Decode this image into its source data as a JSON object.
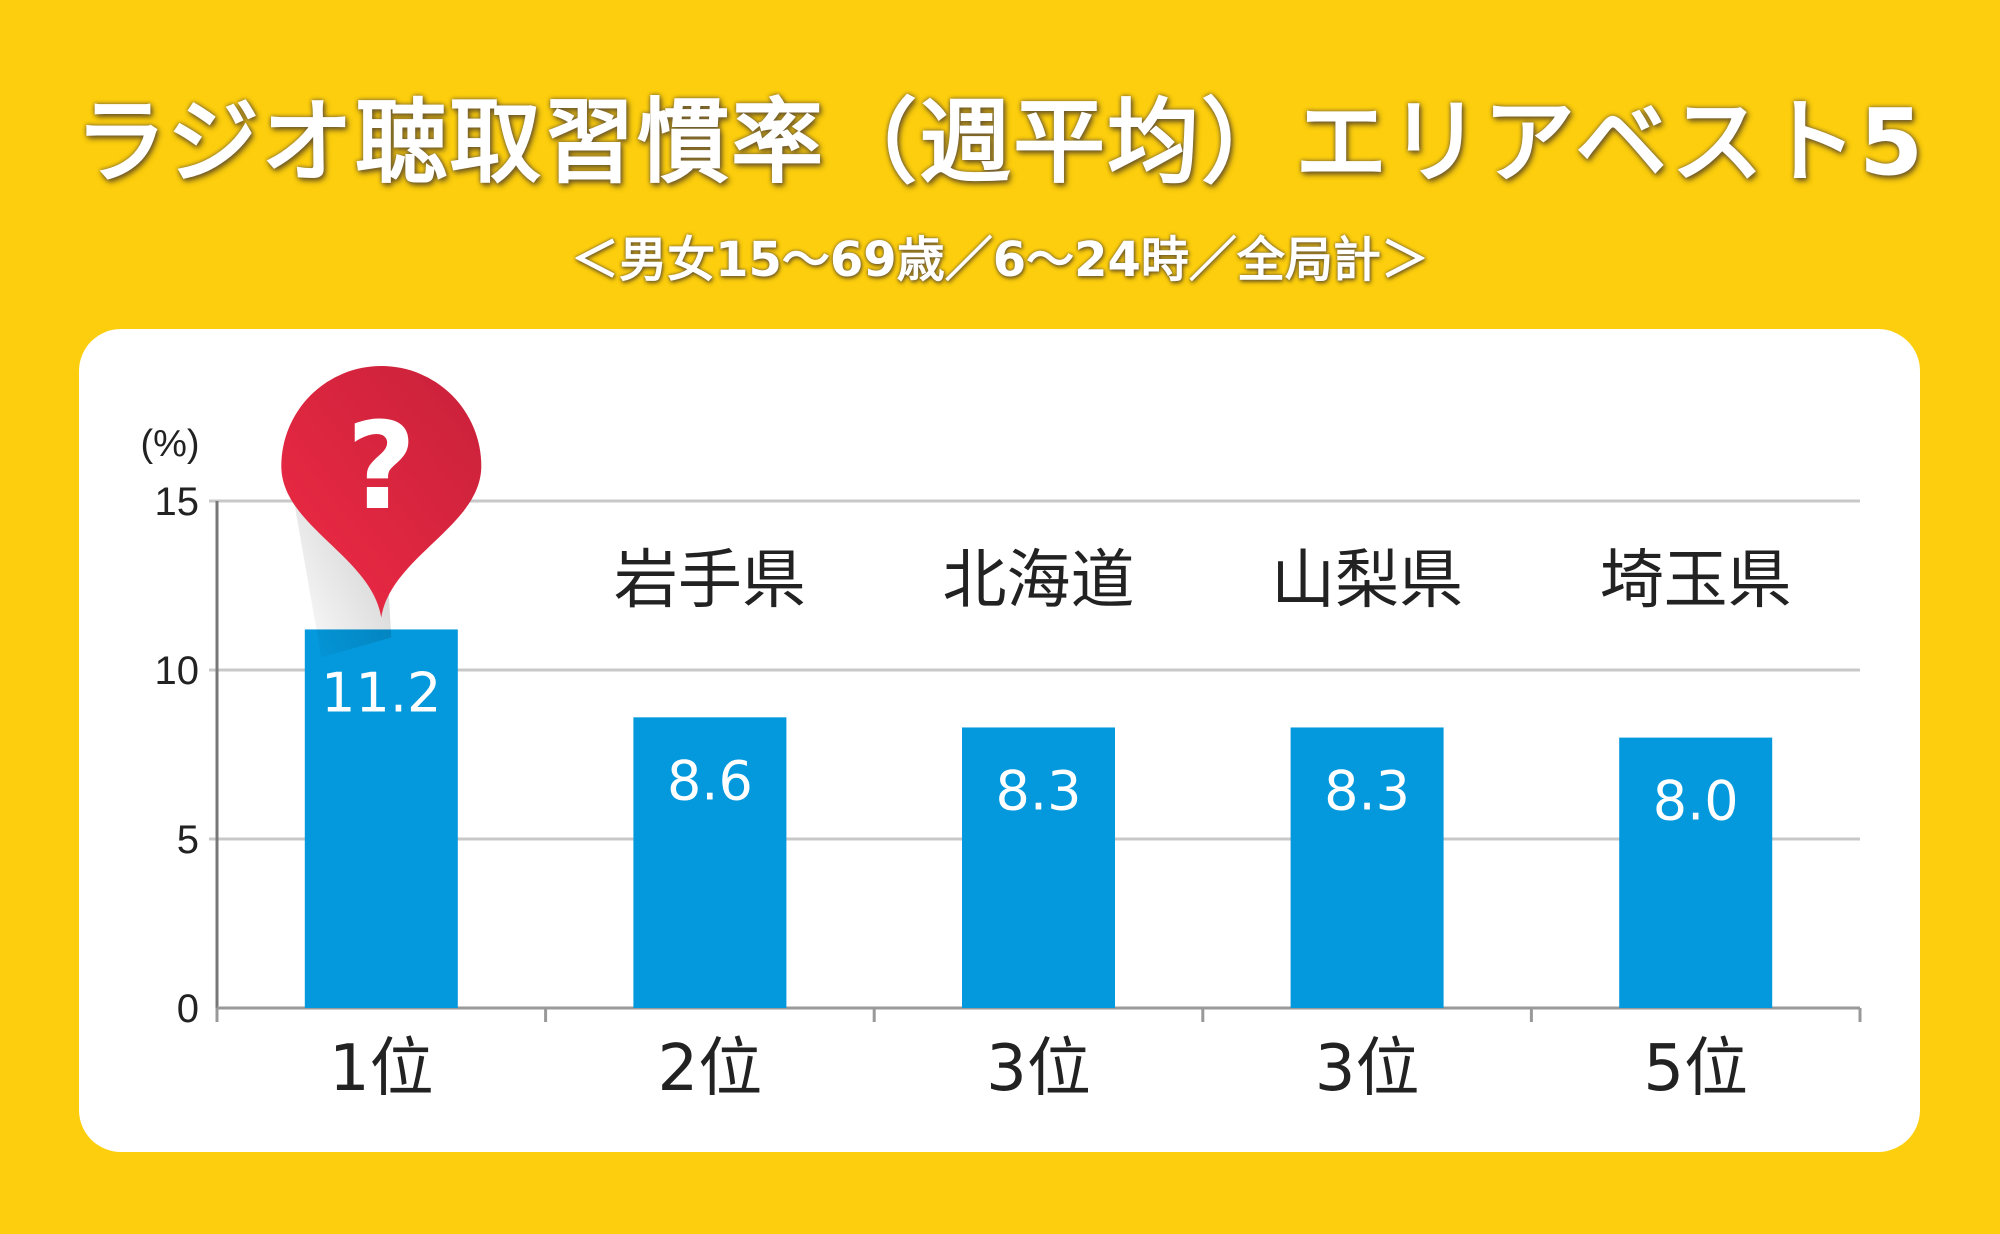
{
  "title": "ラジオ聴取習慣率（週平均）エリアベスト5",
  "subtitle": "＜男女15～69歳／6～24時／全局計＞",
  "colors": {
    "background": "#fcce0d",
    "bar": "#0499dd",
    "pin": "#e8283f",
    "grid": "#c8c8c8"
  },
  "chart_data": {
    "type": "bar",
    "title": "ラジオ聴取習慣率（週平均）エリアベスト5",
    "subtitle": "＜男女15～69歳／6～24時／全局計＞",
    "ylabel": "(%)",
    "ylim": [
      0,
      15
    ],
    "yticks": [
      "0",
      "5",
      "10",
      "15"
    ],
    "grid": true,
    "categories": [
      "1位",
      "2位",
      "3位",
      "3位",
      "5位"
    ],
    "area_labels": [
      "?",
      "岩手県",
      "北海道",
      "山梨県",
      "埼玉県"
    ],
    "values": [
      11.2,
      8.6,
      8.3,
      8.3,
      8.0
    ],
    "value_labels": [
      "11.2",
      "8.6",
      "8.3",
      "8.3",
      "8.0"
    ],
    "highlight": {
      "index": 0,
      "icon": "question-pin-icon",
      "text": "?"
    }
  }
}
